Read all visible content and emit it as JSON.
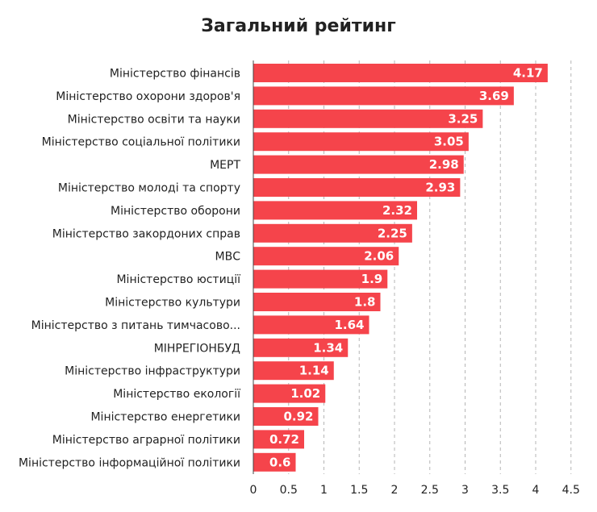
{
  "chart_data": {
    "type": "bar",
    "orientation": "horizontal",
    "title": "Загальний рейтинг",
    "categories": [
      "Міністерство фінансів",
      "Міністерство охорони здоров'я",
      "Міністерство освіти та науки",
      "Міністерство соціальної політики",
      "МЕРТ",
      "Міністерство молоді та спорту",
      "Міністерство оборони",
      "Міністерство закордоних справ",
      "МВС",
      "Міністерство юстиції",
      "Міністерство культури",
      "Міністерство з питань тимчасово...",
      "МІНРЕГІОНБУД",
      "Міністерство інфраструктури",
      "Міністерство екології",
      "Міністерство енергетики",
      "Міністерство аграрної політики",
      "Міністерство інформаційної політики"
    ],
    "values": [
      4.17,
      3.69,
      3.25,
      3.05,
      2.98,
      2.93,
      2.32,
      2.25,
      2.06,
      1.9,
      1.8,
      1.64,
      1.34,
      1.14,
      1.02,
      0.92,
      0.72,
      0.6
    ],
    "value_labels": [
      "4.17",
      "3.69",
      "3.25",
      "3.05",
      "2.98",
      "2.93",
      "2.32",
      "2.25",
      "2.06",
      "1.9",
      "1.8",
      "1.64",
      "1.34",
      "1.14",
      "1.02",
      "0.92",
      "0.72",
      "0.6"
    ],
    "xlim": [
      0,
      4.5
    ],
    "xticks": [
      "0",
      "0.5",
      "1",
      "1.5",
      "2",
      "2.5",
      "3",
      "3.5",
      "4",
      "4.5"
    ],
    "xtick_values": [
      0,
      0.5,
      1,
      1.5,
      2,
      2.5,
      3,
      3.5,
      4,
      4.5
    ],
    "grid": true,
    "bar_color": "#f5444b"
  }
}
